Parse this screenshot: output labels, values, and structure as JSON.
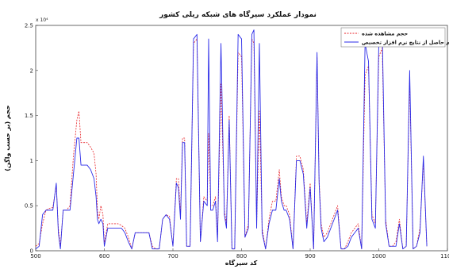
{
  "chart_data": {
    "type": "line",
    "title": "نمودار عملکرد سیرگاه های شبکه ریلی کشور",
    "xlabel": "کد سیرگاه",
    "ylabel": "حجم (بر حسب واگن)",
    "y_multiplier_label": "x 10⁴",
    "xlim": [
      500,
      1100
    ],
    "ylim": [
      0,
      2.5
    ],
    "x_ticks": [
      500,
      600,
      700,
      800,
      900,
      1000,
      1100
    ],
    "x_tick_labels": [
      "500",
      "600",
      "700",
      "800",
      "900",
      "1000",
      "1100"
    ],
    "y_ticks": [
      0,
      0.5,
      1,
      1.5,
      2,
      2.5
    ],
    "y_tick_labels": [
      "0",
      "0.5",
      "1",
      "1.5",
      "2",
      "2.5"
    ],
    "grid": false,
    "legend_position": "top-right",
    "series": [
      {
        "name": "حجم مشاهده شده",
        "color": "#e8262b",
        "style": "dashed",
        "x": [
          500,
          505,
          510,
          515,
          520,
          525,
          530,
          533,
          536,
          540,
          545,
          550,
          555,
          560,
          563,
          566,
          570,
          575,
          580,
          585,
          588,
          590,
          592,
          595,
          598,
          600,
          605,
          610,
          615,
          620,
          625,
          630,
          635,
          640,
          645,
          650,
          655,
          660,
          665,
          670,
          675,
          680,
          685,
          690,
          695,
          700,
          705,
          708,
          711,
          714,
          717,
          720,
          725,
          730,
          735,
          740,
          745,
          750,
          752,
          755,
          758,
          762,
          765,
          770,
          775,
          778,
          782,
          786,
          790,
          795,
          800,
          805,
          810,
          815,
          818,
          822,
          826,
          830,
          835,
          840,
          845,
          850,
          855,
          858,
          862,
          865,
          870,
          875,
          880,
          885,
          890,
          895,
          900,
          905,
          910,
          913,
          916,
          920,
          925,
          930,
          935,
          940,
          945,
          950,
          955,
          960,
          965,
          970,
          975,
          980,
          985,
          990,
          995,
          1000,
          1005,
          1010,
          1015,
          1020,
          1025,
          1030,
          1035,
          1040,
          1045,
          1050,
          1055,
          1060,
          1065,
          1070
        ],
        "values": [
          0.05,
          0.08,
          0.3,
          0.45,
          0.47,
          0.48,
          0.72,
          0.25,
          0.05,
          0.45,
          0.45,
          0.5,
          1.05,
          1.45,
          1.55,
          1.2,
          1.2,
          1.2,
          1.15,
          1.08,
          0.85,
          0.45,
          0.35,
          0.5,
          0.4,
          0.08,
          0.3,
          0.3,
          0.3,
          0.3,
          0.28,
          0.25,
          0.15,
          0.02,
          0.2,
          0.2,
          0.2,
          0.2,
          0.2,
          0.05,
          0.02,
          0.02,
          0.35,
          0.4,
          0.38,
          0.05,
          0.8,
          0.8,
          0.4,
          1.25,
          1.25,
          0.05,
          0.05,
          2.3,
          2.35,
          0.1,
          0.6,
          0.55,
          1.3,
          0.5,
          0.5,
          0.6,
          0.15,
          1.85,
          0.45,
          0.3,
          1.5,
          0.02,
          0.02,
          2.2,
          2.15,
          0.15,
          0.3,
          2.35,
          2.3,
          0.3,
          1.55,
          0.25,
          0.02,
          0.35,
          0.55,
          0.55,
          0.9,
          0.6,
          0.5,
          0.5,
          0.4,
          0.02,
          1.05,
          1.05,
          0.9,
          0.3,
          0.75,
          0.02,
          2.15,
          0.8,
          0.3,
          0.15,
          0.2,
          0.3,
          0.4,
          0.5,
          0.02,
          0.02,
          0.1,
          0.2,
          0.25,
          0.3,
          0.02,
          1.95,
          2.05,
          0.4,
          0.3,
          2.15,
          2.25,
          0.35,
          0.05,
          0.05,
          0.1,
          0.35,
          0.02,
          0.05,
          1.9,
          0.02,
          0.05,
          0.25,
          1.0,
          0.05
        ],
        "values_note": ""
      },
      {
        "name": "حجم حاصل از نتایج نرم افزار تخصیص",
        "color": "#2b2be8",
        "style": "solid",
        "x": [
          500,
          505,
          510,
          515,
          520,
          525,
          530,
          533,
          536,
          540,
          545,
          550,
          555,
          560,
          563,
          566,
          570,
          575,
          580,
          585,
          588,
          590,
          592,
          595,
          598,
          600,
          605,
          610,
          615,
          620,
          625,
          630,
          635,
          640,
          645,
          650,
          655,
          660,
          665,
          670,
          675,
          680,
          685,
          690,
          695,
          700,
          705,
          708,
          711,
          714,
          717,
          720,
          725,
          730,
          735,
          740,
          745,
          750,
          752,
          755,
          758,
          762,
          765,
          770,
          775,
          778,
          782,
          786,
          790,
          795,
          800,
          805,
          810,
          815,
          818,
          822,
          826,
          830,
          835,
          840,
          845,
          850,
          855,
          858,
          862,
          865,
          870,
          875,
          880,
          885,
          890,
          895,
          900,
          905,
          910,
          913,
          916,
          920,
          925,
          930,
          935,
          940,
          945,
          950,
          955,
          960,
          965,
          970,
          975,
          980,
          985,
          990,
          995,
          1000,
          1005,
          1010,
          1015,
          1020,
          1025,
          1030,
          1035,
          1040,
          1045,
          1050,
          1055,
          1060,
          1065,
          1070
        ],
        "values": [
          0.02,
          0.05,
          0.4,
          0.45,
          0.45,
          0.45,
          0.75,
          0.2,
          0.02,
          0.45,
          0.45,
          0.45,
          0.85,
          1.25,
          1.25,
          0.95,
          0.95,
          0.95,
          0.9,
          0.8,
          0.6,
          0.35,
          0.3,
          0.35,
          0.3,
          0.05,
          0.25,
          0.25,
          0.25,
          0.25,
          0.25,
          0.2,
          0.1,
          0.02,
          0.2,
          0.2,
          0.2,
          0.2,
          0.2,
          0.02,
          0.02,
          0.02,
          0.35,
          0.4,
          0.35,
          0.05,
          0.75,
          0.7,
          0.35,
          1.2,
          1.2,
          0.05,
          0.05,
          2.35,
          2.4,
          0.1,
          0.55,
          0.5,
          2.35,
          0.45,
          0.45,
          0.55,
          0.1,
          2.3,
          0.4,
          0.25,
          1.45,
          0.02,
          0.02,
          2.4,
          2.35,
          0.15,
          0.25,
          2.4,
          2.45,
          0.25,
          2.3,
          0.2,
          0.02,
          0.3,
          0.45,
          0.45,
          0.8,
          0.55,
          0.45,
          0.45,
          0.35,
          0.02,
          1.0,
          1.0,
          0.85,
          0.25,
          0.7,
          0.02,
          2.2,
          0.75,
          0.25,
          0.1,
          0.15,
          0.25,
          0.35,
          0.45,
          0.02,
          0.02,
          0.05,
          0.15,
          0.2,
          0.25,
          0.02,
          2.3,
          2.1,
          0.35,
          0.25,
          2.3,
          2.45,
          0.3,
          0.05,
          0.05,
          0.05,
          0.3,
          0.02,
          0.05,
          2.0,
          0.02,
          0.05,
          0.2,
          1.05,
          0.05
        ],
        "values_note": ""
      }
    ]
  }
}
